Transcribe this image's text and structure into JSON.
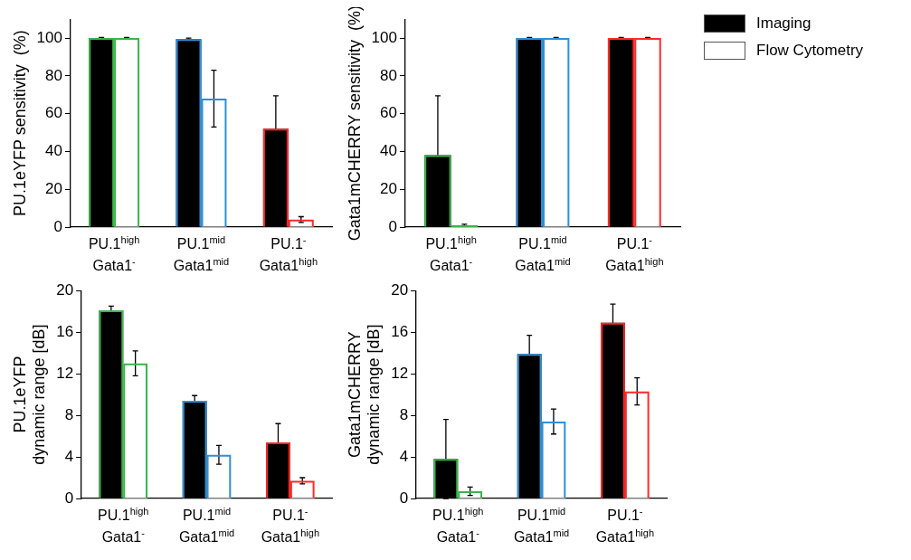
{
  "chart_data": [
    {
      "type": "bar",
      "ylabel": "PU.1eYFP sensitivity  (%)",
      "categories": [
        "PU.1$^{high}$\nGata1$^{-}$",
        "PU.1$^{mid}$\nGata1$^{mid}$",
        "PU.1$^{-}$\nGata1$^{high}$"
      ],
      "ylim": [
        0,
        110
      ],
      "yticks": [
        0,
        20,
        40,
        60,
        80,
        100
      ],
      "series": [
        {
          "color": "#000000",
          "values": [
            100,
            99.5,
            52
          ],
          "errors": [
            0.3,
            0.5,
            17.5
          ]
        },
        {
          "color": "#ffffff",
          "values": [
            100,
            68,
            4
          ],
          "errors": [
            0.3,
            15,
            1.5
          ]
        }
      ]
    },
    {
      "type": "bar",
      "ylabel": "Gata1mCHERRY sensitivity  (%)",
      "categories": [
        "PU.1$^{high}$\nGata1$^{-}$",
        "PU.1$^{mid}$\nGata1$^{mid}$",
        "PU.1$^{-}$\nGata1$^{high}$"
      ],
      "ylim": [
        0,
        110
      ],
      "yticks": [
        0,
        20,
        40,
        60,
        80,
        100
      ],
      "legend": "right",
      "series": [
        {
          "name": "Imaging",
          "color": "#000000",
          "values": [
            38,
            100,
            100
          ],
          "errors": [
            31.5,
            0.3,
            0.3
          ]
        },
        {
          "name": "Flow Cytometry",
          "color": "#ffffff",
          "values": [
            1,
            100,
            100
          ],
          "errors": [
            0.5,
            0.3,
            0.3
          ]
        }
      ]
    },
    {
      "type": "bar",
      "ylabel": "PU.1eYFP\ndynamic range [dB]",
      "categories": [
        "PU.1$^{high}$\nGata1$^{-}$",
        "PU.1$^{mid}$\nGata1$^{mid}$",
        "PU.1$^{-}$\nGata1$^{high}$"
      ],
      "ylim": [
        0,
        20
      ],
      "yticks": [
        0,
        4,
        8,
        12,
        16,
        20
      ],
      "series": [
        {
          "color": "#000000",
          "values": [
            18.1,
            9.4,
            5.4
          ],
          "errors": [
            0.4,
            0.5,
            1.8
          ]
        },
        {
          "color": "#ffffff",
          "values": [
            13.0,
            4.2,
            1.7
          ],
          "errors": [
            1.2,
            0.9,
            0.3
          ]
        }
      ]
    },
    {
      "type": "bar",
      "ylabel": "Gata1mCHERRY\ndynamic range [dB]",
      "categories": [
        "PU.1$^{high}$\nGata1$^{-}$",
        "PU.1$^{mid}$\nGata1$^{mid}$",
        "PU.1$^{-}$\nGata1$^{high}$"
      ],
      "ylim": [
        0,
        20
      ],
      "yticks": [
        0,
        4,
        8,
        12,
        16,
        20
      ],
      "series": [
        {
          "color": "#000000",
          "values": [
            3.8,
            13.9,
            16.9
          ],
          "errors": [
            3.8,
            1.8,
            1.8
          ]
        },
        {
          "color": "#ffffff",
          "values": [
            0.7,
            7.4,
            10.3
          ],
          "errors": [
            0.4,
            1.2,
            1.3
          ]
        }
      ]
    }
  ]
}
